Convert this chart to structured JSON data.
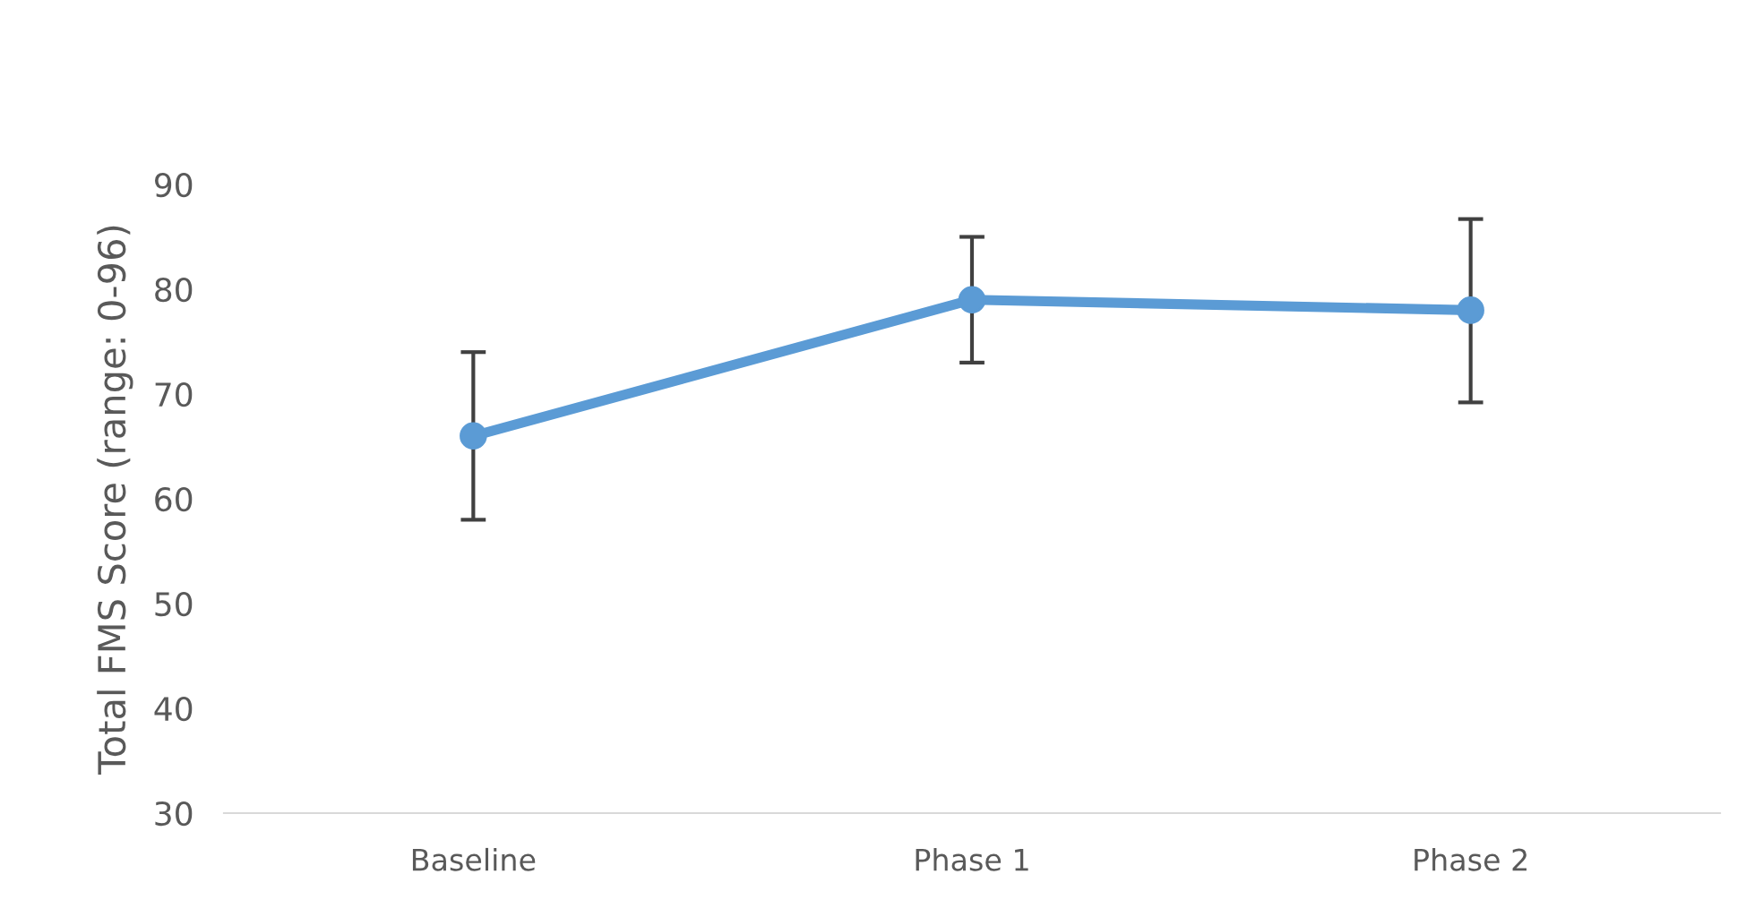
{
  "chart_data": {
    "type": "line",
    "ylabel": "Total FMS Score (range: 0-96)",
    "categories": [
      "Baseline",
      "Phase 1",
      "Phase 2"
    ],
    "series": [
      {
        "color": "#5b9bd5",
        "values": [
          66,
          79,
          78
        ],
        "errors": [
          8,
          6,
          [
            69.2,
            86.7
          ]
        ]
      }
    ],
    "ylim": [
      30,
      90
    ],
    "yticks": [
      30,
      40,
      50,
      60,
      70,
      80,
      90
    ],
    "grid": false,
    "legend": false,
    "marker": "circle",
    "line_style": "solid"
  }
}
